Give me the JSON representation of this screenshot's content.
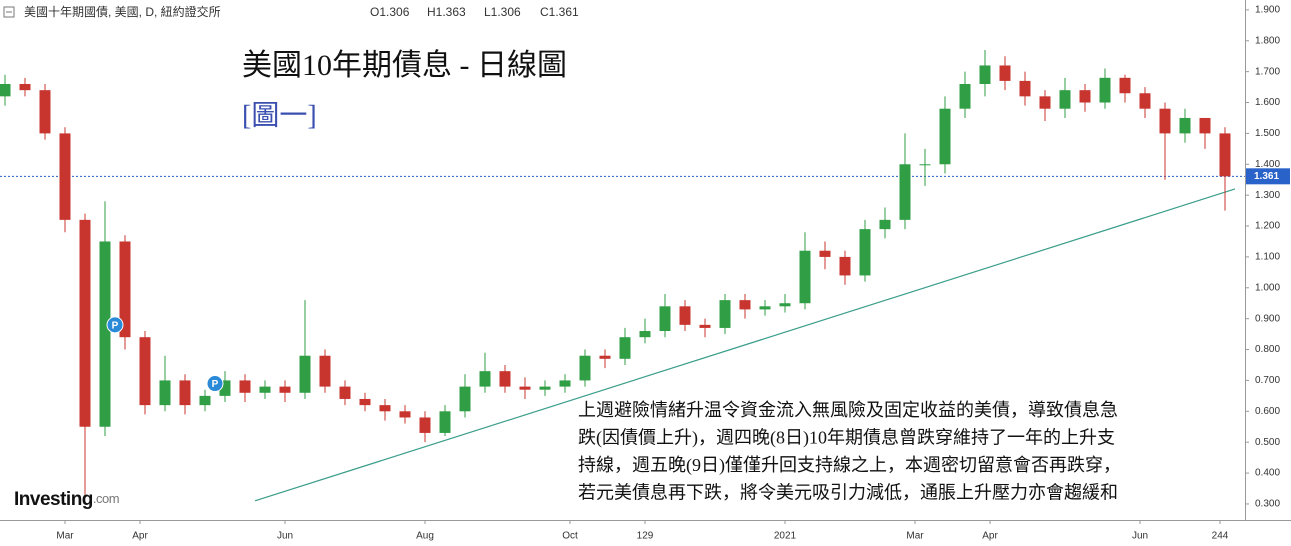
{
  "header": {
    "symbol": "美國十年期國債, 美國, D, 紐約證交所",
    "ohlc": [
      "O1.306",
      "H1.363",
      "L1.306",
      "C1.361"
    ]
  },
  "chart_data": {
    "type": "candlestick",
    "title": "美國10年期債息 - 日線圖",
    "subtitle": "[圖一]",
    "annotation": [
      "上週避險情緒升温令資金流入無風險及固定收益的美債，導致債息急",
      "跌(因債價上升)，週四晚(8日)10年期債息曾跌穿維持了一年的上升支",
      "持線，週五晚(9日)僅僅升回支持線之上，本週密切留意會否再跌穿，",
      "若元美債息再下跌，將令美元吸引力減低，通脹上升壓力亦會趨緩和"
    ],
    "logo": "Investing",
    "logo_suffix": ".com",
    "up_color": "#2f9e44",
    "down_color": "#c8352f",
    "x": [
      1,
      5,
      9,
      13,
      17,
      21,
      25,
      29,
      33,
      37,
      41,
      45,
      49,
      53,
      57,
      61,
      65,
      69,
      73,
      77,
      81,
      85,
      89,
      93,
      97,
      101,
      105,
      109,
      113,
      117,
      121,
      125,
      129,
      133,
      137,
      141,
      145,
      149,
      153,
      157,
      161,
      165,
      169,
      173,
      177,
      181,
      185,
      189,
      193,
      197,
      201,
      205,
      209,
      213,
      217,
      221,
      225,
      229,
      233,
      237,
      241,
      245
    ],
    "open": [
      1.62,
      1.66,
      1.64,
      1.5,
      1.22,
      0.55,
      1.15,
      0.84,
      0.62,
      0.7,
      0.62,
      0.65,
      0.7,
      0.66,
      0.68,
      0.66,
      0.78,
      0.68,
      0.64,
      0.62,
      0.6,
      0.58,
      0.53,
      0.6,
      0.68,
      0.73,
      0.68,
      0.67,
      0.68,
      0.7,
      0.78,
      0.77,
      0.84,
      0.86,
      0.94,
      0.88,
      0.87,
      0.96,
      0.93,
      0.94,
      0.95,
      1.12,
      1.1,
      1.04,
      1.19,
      1.22,
      1.4,
      1.4,
      1.58,
      1.66,
      1.72,
      1.67,
      1.62,
      1.58,
      1.64,
      1.6,
      1.68,
      1.63,
      1.58,
      1.5,
      1.55,
      1.5
    ],
    "high": [
      1.69,
      1.68,
      1.66,
      1.52,
      1.24,
      1.28,
      1.17,
      0.86,
      0.78,
      0.72,
      0.67,
      0.73,
      0.72,
      0.7,
      0.7,
      0.96,
      0.8,
      0.7,
      0.66,
      0.64,
      0.62,
      0.6,
      0.62,
      0.72,
      0.79,
      0.75,
      0.71,
      0.7,
      0.72,
      0.8,
      0.8,
      0.87,
      0.9,
      0.98,
      0.96,
      0.9,
      0.98,
      0.98,
      0.96,
      0.98,
      1.18,
      1.15,
      1.12,
      1.22,
      1.26,
      1.5,
      1.45,
      1.62,
      1.7,
      1.77,
      1.75,
      1.7,
      1.64,
      1.68,
      1.66,
      1.71,
      1.69,
      1.65,
      1.6,
      1.58,
      1.55,
      1.52
    ],
    "low": [
      1.59,
      1.62,
      1.48,
      1.18,
      0.33,
      0.52,
      0.8,
      0.59,
      0.6,
      0.59,
      0.6,
      0.63,
      0.63,
      0.64,
      0.63,
      0.64,
      0.66,
      0.62,
      0.6,
      0.57,
      0.56,
      0.5,
      0.52,
      0.58,
      0.66,
      0.66,
      0.64,
      0.65,
      0.66,
      0.68,
      0.74,
      0.75,
      0.82,
      0.84,
      0.86,
      0.84,
      0.85,
      0.9,
      0.91,
      0.92,
      0.93,
      1.06,
      1.01,
      1.02,
      1.16,
      1.19,
      1.33,
      1.37,
      1.55,
      1.62,
      1.64,
      1.59,
      1.54,
      1.55,
      1.57,
      1.58,
      1.6,
      1.55,
      1.35,
      1.47,
      1.45,
      1.25
    ],
    "close": [
      1.66,
      1.64,
      1.5,
      1.22,
      0.55,
      1.15,
      0.84,
      0.62,
      0.7,
      0.62,
      0.65,
      0.7,
      0.66,
      0.68,
      0.66,
      0.78,
      0.68,
      0.64,
      0.62,
      0.6,
      0.58,
      0.53,
      0.6,
      0.68,
      0.73,
      0.68,
      0.67,
      0.68,
      0.7,
      0.78,
      0.77,
      0.84,
      0.86,
      0.94,
      0.88,
      0.87,
      0.96,
      0.93,
      0.94,
      0.95,
      1.12,
      1.1,
      1.04,
      1.19,
      1.22,
      1.4,
      1.4,
      1.58,
      1.66,
      1.72,
      1.67,
      1.62,
      1.58,
      1.64,
      1.6,
      1.68,
      1.63,
      1.58,
      1.5,
      1.55,
      1.5,
      1.361
    ],
    "trendline": {
      "x": [
        51,
        247
      ],
      "y": [
        0.31,
        1.32
      ],
      "color": "#3a9e8a"
    },
    "event_markers": [
      {
        "label": "P",
        "x": 23,
        "y": 0.88
      },
      {
        "label": "P",
        "x": 43,
        "y": 0.69
      }
    ],
    "last_price": 1.361,
    "last_price_color": "#2962c8",
    "xlim": [
      0,
      249
    ],
    "ylim": [
      0.248,
      1.932
    ],
    "xticks": [
      {
        "value": 13,
        "label": "Mar"
      },
      {
        "value": 28,
        "label": "Apr"
      },
      {
        "value": 57,
        "label": "Jun"
      },
      {
        "value": 85,
        "label": "Aug"
      },
      {
        "value": 114,
        "label": "Oct"
      },
      129,
      {
        "value": 157,
        "label": "2021"
      },
      {
        "value": 183,
        "label": "Mar"
      },
      {
        "value": 198,
        "label": "Apr"
      },
      {
        "value": 228,
        "label": "Jun"
      },
      244
    ],
    "yticks": [
      {
        "value": 1.9,
        "label": "1.900"
      },
      {
        "value": 1.8,
        "label": "1.800"
      },
      {
        "value": 1.7,
        "label": "1.700"
      },
      {
        "value": 1.6,
        "label": "1.600"
      },
      {
        "value": 1.5,
        "label": "1.500"
      },
      {
        "value": 1.4,
        "label": "1.400"
      },
      {
        "value": 1.3,
        "label": "1.300"
      },
      {
        "value": 1.2,
        "label": "1.200"
      },
      {
        "value": 1.1,
        "label": "1.100"
      },
      {
        "value": 1.0,
        "label": "1.000"
      },
      {
        "value": 0.9,
        "label": "0.900"
      },
      {
        "value": 0.8,
        "label": "0.800"
      },
      {
        "value": 0.7,
        "label": "0.700"
      },
      {
        "value": 0.6,
        "label": "0.600"
      },
      {
        "value": 0.5,
        "label": "0.500"
      },
      {
        "value": 0.4,
        "label": "0.400"
      },
      {
        "value": 0.3,
        "label": "0.300"
      }
    ]
  }
}
